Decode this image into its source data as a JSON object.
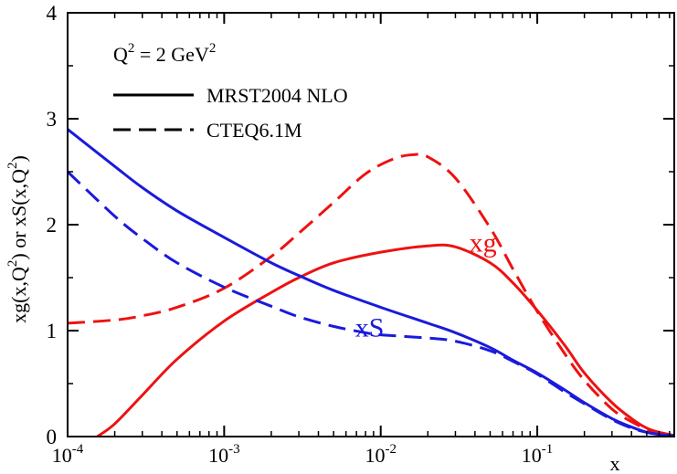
{
  "chart_data": {
    "type": "line",
    "title": "",
    "x_scale": "log",
    "xlim": [
      0.0001,
      0.75
    ],
    "ylim": [
      0,
      4
    ],
    "xlabel": "x",
    "ylabel": {
      "parts": [
        "xg(x,Q",
        "2",
        ")   or   xS(x,Q",
        "2",
        ")"
      ]
    },
    "x_ticks": [
      {
        "value": 0.0001,
        "base": "10",
        "exp": "-4"
      },
      {
        "value": 0.001,
        "base": "10",
        "exp": "-3"
      },
      {
        "value": 0.01,
        "base": "10",
        "exp": "-2"
      },
      {
        "value": 0.1,
        "base": "10",
        "exp": "-1"
      }
    ],
    "y_ticks": [
      {
        "value": 0,
        "label": "0"
      },
      {
        "value": 1,
        "label": "1"
      },
      {
        "value": 2,
        "label": "2"
      },
      {
        "value": 3,
        "label": "3"
      },
      {
        "value": 4,
        "label": "4"
      }
    ],
    "legend": {
      "position": "top-left",
      "header": {
        "text": "Q",
        "sup1": "2",
        "mid": " = 2 GeV",
        "sup2": "2"
      },
      "entries": [
        {
          "label": "MRST2004 NLO",
          "style": "solid"
        },
        {
          "label": "CTEQ6.1M",
          "style": "dashed"
        }
      ]
    },
    "annotations": [
      {
        "text": "xg",
        "color": "#ee1111",
        "x": 0.045,
        "y": 1.83
      },
      {
        "text": "xS",
        "color": "#1a1adc",
        "x": 0.0085,
        "y": 1.03
      }
    ],
    "series": [
      {
        "name": "MRST2004 NLO xg",
        "color": "#ee1111",
        "style": "solid",
        "points": [
          [
            0.000155,
            0
          ],
          [
            0.0002,
            0.12
          ],
          [
            0.0003,
            0.39
          ],
          [
            0.0005,
            0.73
          ],
          [
            0.001,
            1.09
          ],
          [
            0.002,
            1.36
          ],
          [
            0.003,
            1.5
          ],
          [
            0.005,
            1.64
          ],
          [
            0.01,
            1.74
          ],
          [
            0.02,
            1.8
          ],
          [
            0.03,
            1.79
          ],
          [
            0.05,
            1.64
          ],
          [
            0.07,
            1.45
          ],
          [
            0.1,
            1.19
          ],
          [
            0.15,
            0.86
          ],
          [
            0.2,
            0.6
          ],
          [
            0.3,
            0.32
          ],
          [
            0.4,
            0.17
          ],
          [
            0.5,
            0.08
          ],
          [
            0.6,
            0.04
          ],
          [
            0.7,
            0.02
          ],
          [
            0.75,
            0.01
          ]
        ]
      },
      {
        "name": "CTEQ6.1M xg",
        "color": "#ee1111",
        "style": "dashed",
        "points": [
          [
            0.0001,
            1.07
          ],
          [
            0.0002,
            1.1
          ],
          [
            0.0003,
            1.14
          ],
          [
            0.0005,
            1.22
          ],
          [
            0.001,
            1.4
          ],
          [
            0.002,
            1.7
          ],
          [
            0.003,
            1.92
          ],
          [
            0.005,
            2.21
          ],
          [
            0.008,
            2.48
          ],
          [
            0.012,
            2.62
          ],
          [
            0.016,
            2.66
          ],
          [
            0.02,
            2.64
          ],
          [
            0.03,
            2.44
          ],
          [
            0.05,
            1.97
          ],
          [
            0.07,
            1.58
          ],
          [
            0.1,
            1.18
          ],
          [
            0.15,
            0.78
          ],
          [
            0.2,
            0.53
          ],
          [
            0.3,
            0.26
          ],
          [
            0.4,
            0.14
          ],
          [
            0.5,
            0.07
          ],
          [
            0.6,
            0.03
          ],
          [
            0.75,
            0.01
          ]
        ]
      },
      {
        "name": "MRST2004 NLO xS",
        "color": "#1a1adc",
        "style": "solid",
        "points": [
          [
            0.0001,
            2.9
          ],
          [
            0.0002,
            2.55
          ],
          [
            0.0003,
            2.35
          ],
          [
            0.0005,
            2.13
          ],
          [
            0.001,
            1.88
          ],
          [
            0.002,
            1.64
          ],
          [
            0.003,
            1.52
          ],
          [
            0.005,
            1.38
          ],
          [
            0.01,
            1.22
          ],
          [
            0.02,
            1.07
          ],
          [
            0.03,
            0.98
          ],
          [
            0.05,
            0.84
          ],
          [
            0.07,
            0.72
          ],
          [
            0.1,
            0.6
          ],
          [
            0.15,
            0.44
          ],
          [
            0.2,
            0.32
          ],
          [
            0.3,
            0.17
          ],
          [
            0.4,
            0.09
          ],
          [
            0.5,
            0.04
          ],
          [
            0.6,
            0.02
          ],
          [
            0.75,
            0.005
          ]
        ]
      },
      {
        "name": "CTEQ6.1M xS",
        "color": "#1a1adc",
        "style": "dashed",
        "points": [
          [
            0.0001,
            2.5
          ],
          [
            0.0002,
            2.08
          ],
          [
            0.0003,
            1.87
          ],
          [
            0.0005,
            1.64
          ],
          [
            0.001,
            1.41
          ],
          [
            0.002,
            1.23
          ],
          [
            0.003,
            1.13
          ],
          [
            0.005,
            1.04
          ],
          [
            0.008,
            0.98
          ],
          [
            0.01,
            0.96
          ],
          [
            0.02,
            0.93
          ],
          [
            0.03,
            0.9
          ],
          [
            0.05,
            0.81
          ],
          [
            0.07,
            0.71
          ],
          [
            0.1,
            0.59
          ],
          [
            0.15,
            0.42
          ],
          [
            0.2,
            0.31
          ],
          [
            0.3,
            0.16
          ],
          [
            0.4,
            0.08
          ],
          [
            0.5,
            0.04
          ],
          [
            0.6,
            0.02
          ],
          [
            0.75,
            0.005
          ]
        ]
      }
    ]
  }
}
